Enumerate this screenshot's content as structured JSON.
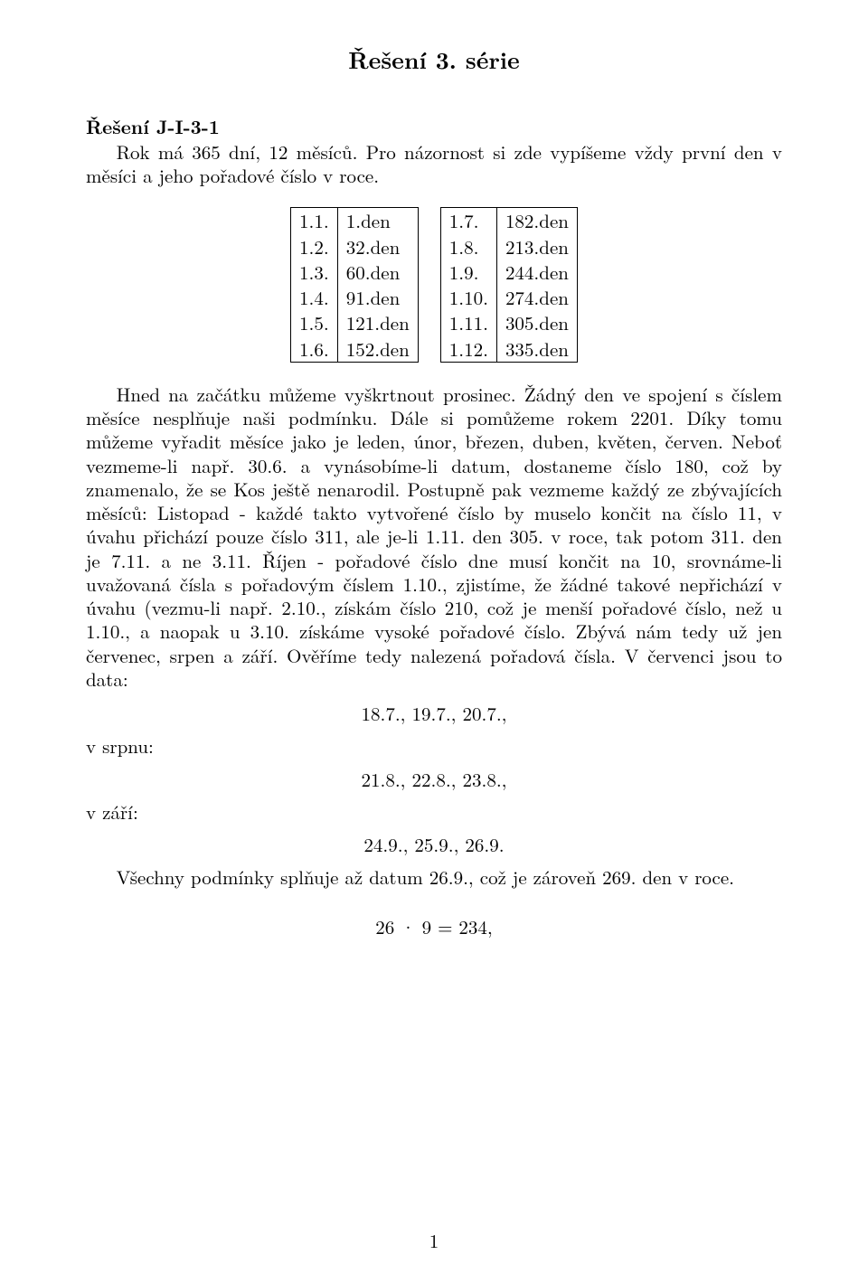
{
  "title": "Řešení 3. série",
  "heading": "Řešení J-I-3-1",
  "intro": {
    "line1": "Rok má 365 dní, 12 měsíců. Pro názornost si zde vypíšeme vždy první den v měsíci a jeho pořadové číslo v roce."
  },
  "table_left": {
    "rows": [
      [
        "1.1.",
        "1.den"
      ],
      [
        "1.2.",
        "32.den"
      ],
      [
        "1.3.",
        "60.den"
      ],
      [
        "1.4.",
        "91.den"
      ],
      [
        "1.5.",
        "121.den"
      ],
      [
        "1.6.",
        "152.den"
      ]
    ]
  },
  "table_right": {
    "rows": [
      [
        "1.7.",
        "182.den"
      ],
      [
        "1.8.",
        "213.den"
      ],
      [
        "1.9.",
        "244.den"
      ],
      [
        "1.10.",
        "274.den"
      ],
      [
        "1.11.",
        "305.den"
      ],
      [
        "1.12.",
        "335.den"
      ]
    ]
  },
  "main_text": "Hned na začátku můžeme vyškrtnout prosinec. Žádný den ve spojení s číslem měsíce nesplňuje naši podmínku. Dále si pomůžeme rokem 2201. Díky tomu můžeme vyřadit měsíce jako je leden, únor, březen, duben, květen, červen. Neboť vezmeme-li např. 30.6. a vynásobíme-li datum, dostaneme číslo 180, což by znamenalo, že se Kos ještě nenarodil. Postupně pak vezmeme každý ze zbývajících měsíců: Listopad - každé takto vytvořené číslo by muselo končit na číslo 11, v úvahu přichází pouze číslo 311, ale je-li 1.11. den 305. v roce, tak potom 311. den je 7.11. a ne 3.11. Říjen - pořadové číslo dne musí končit na 10, srovnáme-li uvažovaná čísla s pořadovým číslem 1.10., zjistíme, že žádné takové nepřichází v úvahu (vezmu-li např. 2.10., získám číslo 210, což je menší pořadové číslo, než u 1.10., a naopak u 3.10. získáme vysoké pořadové číslo. Zbývá nám tedy už jen červenec, srpen a září. Ověříme tedy nalezená pořadová čísla. V červenci jsou to data:",
  "dates": {
    "july": "18.7., 19.7., 20.7.,",
    "august_label": "v srpnu:",
    "august": "21.8., 22.8., 23.8.,",
    "september_label": "v září:",
    "september": "24.9., 25.9., 26.9."
  },
  "final_text": "Všechny podmínky splňuje až datum 26.9., což je zároveň 269. den v roce.",
  "equation": "26 · 9 = 234,",
  "page_number": "1"
}
